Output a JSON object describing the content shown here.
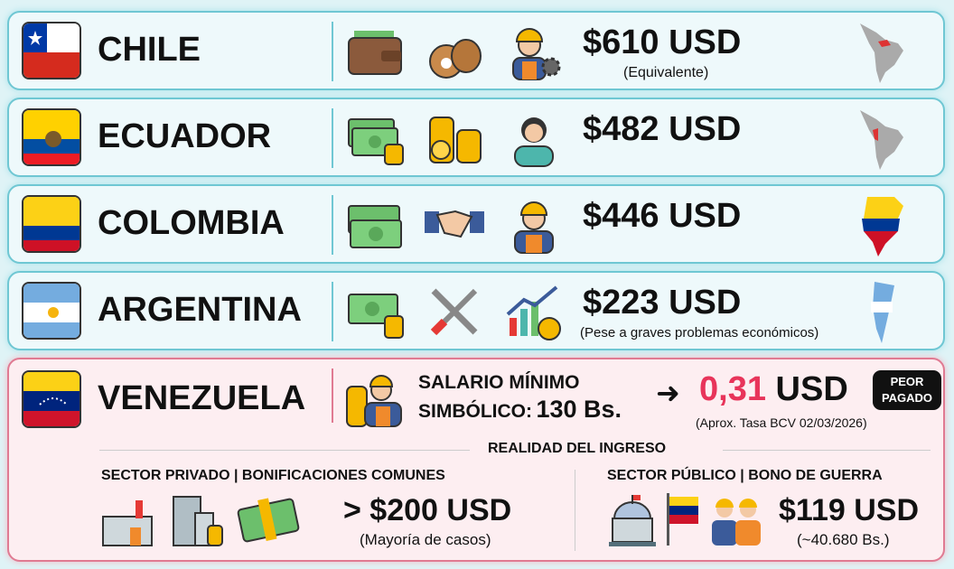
{
  "countries": [
    {
      "name": "CHILE",
      "price": "$610 USD",
      "note": "(Equivalente)"
    },
    {
      "name": "ECUADOR",
      "price": "$482 USD",
      "note": ""
    },
    {
      "name": "COLOMBIA",
      "price": "$446 USD",
      "note": ""
    },
    {
      "name": "ARGENTINA",
      "price": "$223 USD",
      "note": "(Pese a graves problemas económicos)"
    }
  ],
  "venezuela": {
    "name": "VENEZUELA",
    "line1": "SALARIO MÍNIMO",
    "line2_label": "SIMBÓLICO:",
    "line2_value": "130 Bs.",
    "arrow": "➜",
    "usd_value": "0,31",
    "usd_unit": "USD",
    "badge": [
      "PEOR",
      "PAGADO"
    ],
    "rate_note": "(Aprox. Tasa BCV 02/03/2026)",
    "section_title": "REALIDAD DEL INGRESO",
    "private": {
      "title": "SECTOR PRIVADO | BONIFICACIONES COMUNES",
      "value": "> $200 USD",
      "note": "(Mayoría de casos)"
    },
    "public": {
      "title": "SECTOR PÚBLICO | BONO DE GUERRA",
      "value": "$119 USD",
      "note": "(~40.680 Bs.)"
    }
  },
  "colors": {
    "accent_red": "#e8345a",
    "row_border": "#6fc7d3",
    "ven_border": "#e07a92"
  }
}
